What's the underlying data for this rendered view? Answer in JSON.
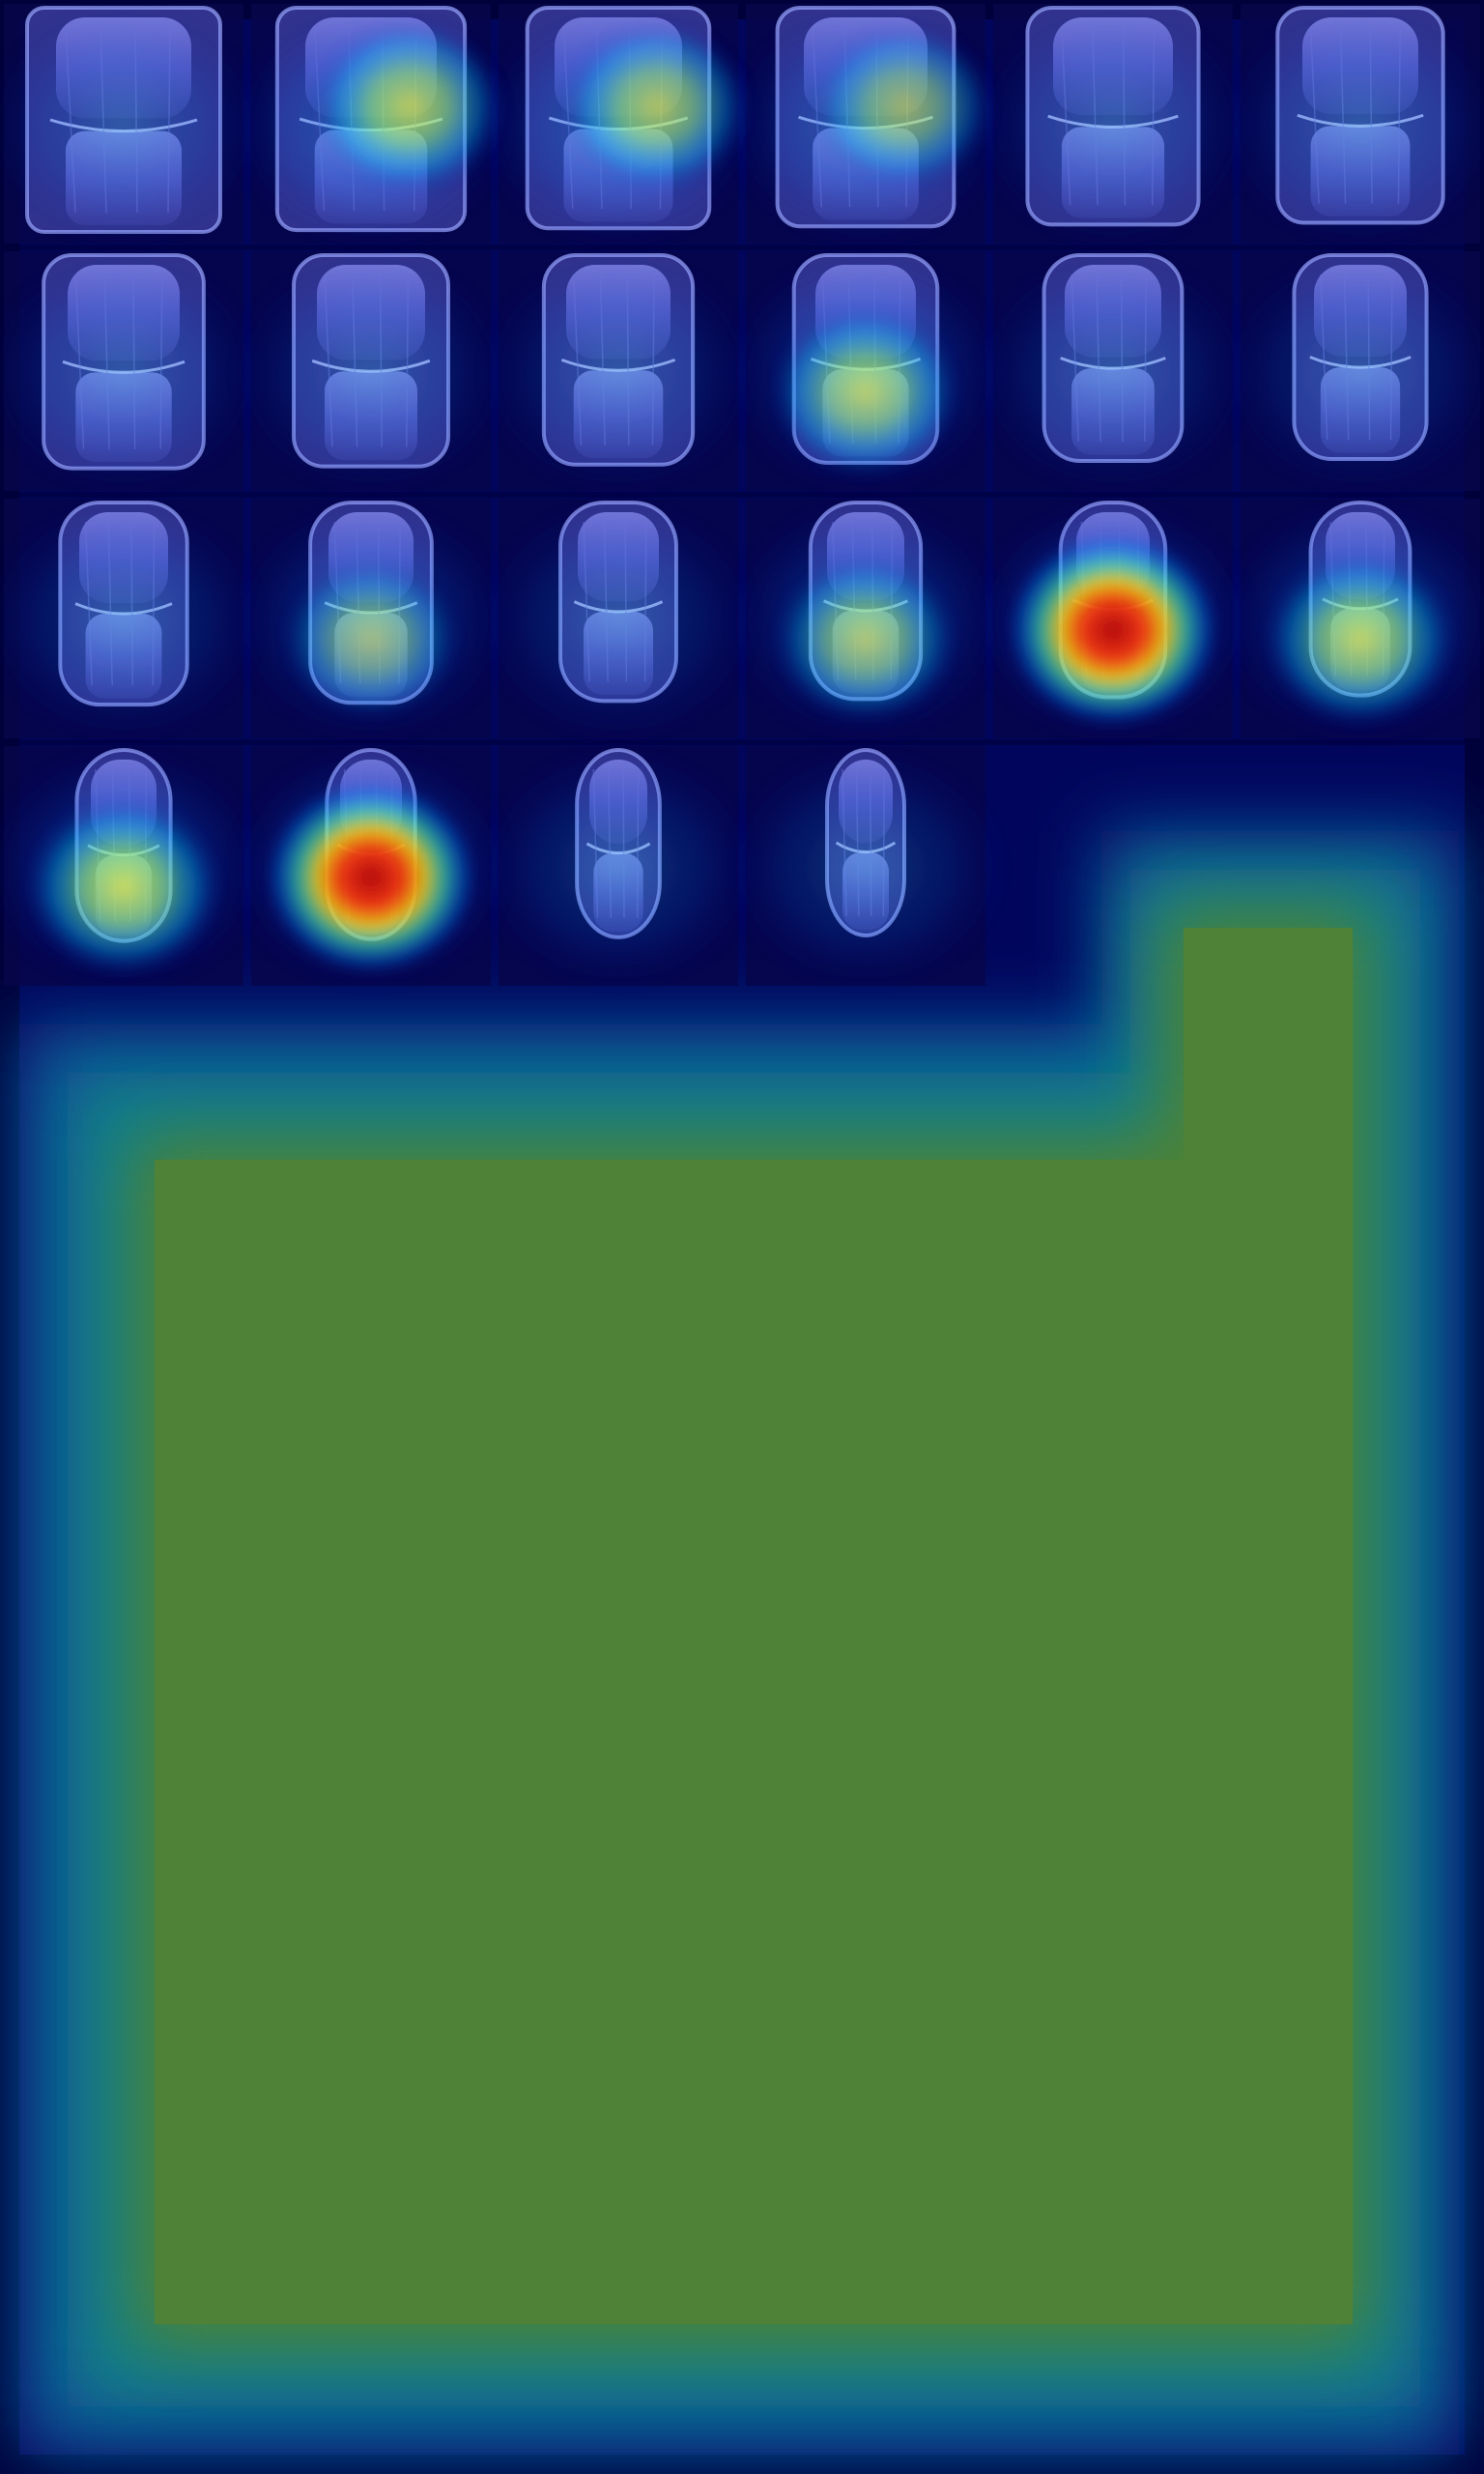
{
  "image": {
    "kind": "knee MRI coronal slice montage with attention heatmap overlay",
    "grid": {
      "rows_visible": 4,
      "columns": 6,
      "slice_count": 22
    },
    "colormap": "jet",
    "colors": {
      "background": "#000034",
      "heat_low": "#00007f",
      "heat_mid": "#00c8ff",
      "heat_high": "#ffff00",
      "heat_max": "#d00000",
      "empty_region": "#4e8236",
      "empty_border": "#0c7a86"
    },
    "slice_heat_levels": [
      0.1,
      0.55,
      0.5,
      0.4,
      0.05,
      0.1,
      0.05,
      0.05,
      0.05,
      0.5,
      0.05,
      0.05,
      0.2,
      0.35,
      0.1,
      0.45,
      0.95,
      0.55,
      0.6,
      0.85,
      0.25,
      0.2
    ]
  }
}
